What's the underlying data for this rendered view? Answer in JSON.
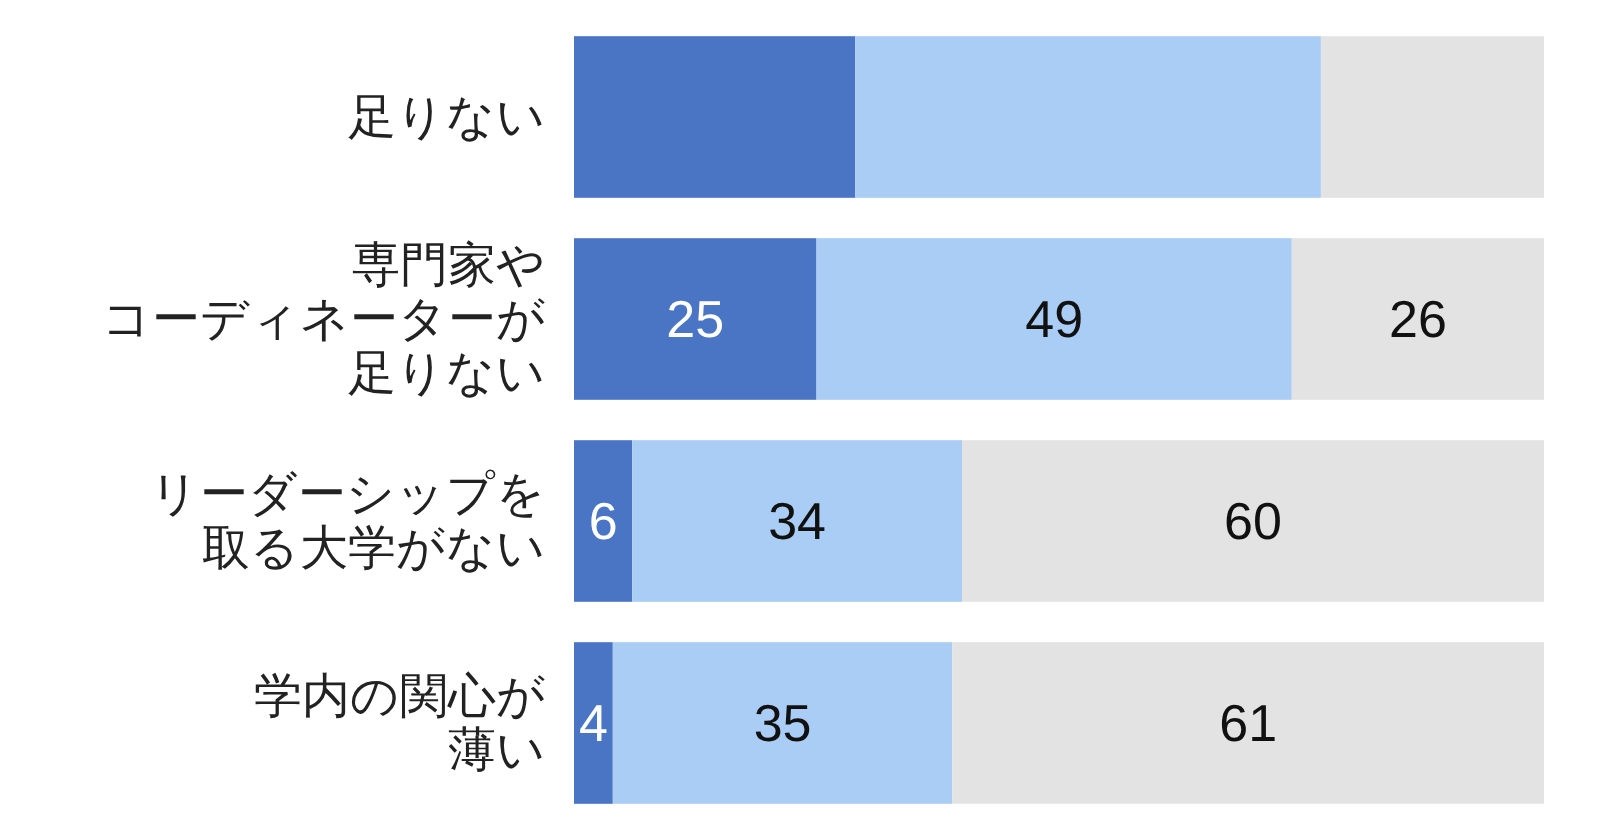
{
  "chart_data": {
    "type": "bar",
    "orientation": "horizontal",
    "stacked": true,
    "categories": [
      "足りない",
      "専門家やコーディネーターが足りない",
      "リーダーシップを取る大学がない",
      "学内の関心が薄い"
    ],
    "series": [
      {
        "color": "#4a74c4",
        "values": [
          29,
          25,
          6,
          4
        ],
        "value_labels": [
          null,
          "25",
          "6",
          "4"
        ]
      },
      {
        "color": "#aacdf5",
        "values": [
          48,
          49,
          34,
          35
        ],
        "value_labels": [
          null,
          "49",
          "34",
          "35"
        ]
      },
      {
        "color": "#e3e3e3",
        "values": [
          23,
          26,
          60,
          61
        ],
        "value_labels": [
          null,
          "26",
          "60",
          "61"
        ]
      }
    ],
    "xlim": [
      0,
      100
    ]
  }
}
